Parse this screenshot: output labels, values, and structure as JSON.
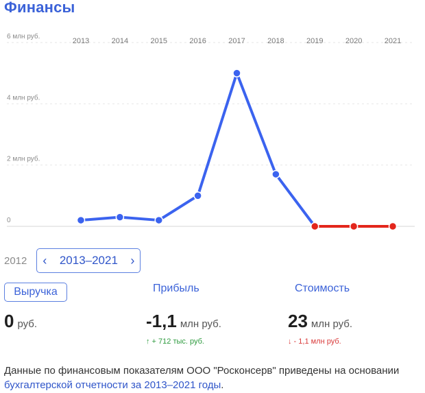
{
  "page": {
    "title": "Финансы"
  },
  "chart_data": {
    "type": "line",
    "x": [
      "2013",
      "2014",
      "2015",
      "2016",
      "2017",
      "2018",
      "2019",
      "2020",
      "2021"
    ],
    "series": [
      {
        "values": [
          0.2,
          0.3,
          0.2,
          1.0,
          5.0,
          1.7,
          0.0,
          0.0,
          0.0
        ]
      }
    ],
    "ytick_labels": [
      "0",
      "2 млн руб.",
      "4 млн руб.",
      "6 млн руб."
    ],
    "yticks": [
      0,
      2,
      4,
      6
    ],
    "ylim": [
      0,
      6
    ],
    "grid": true,
    "colors": {
      "positive": "#3b63ef",
      "zero": "#e3261c"
    }
  },
  "range": {
    "prev_year": "2012",
    "label": "2013–2021"
  },
  "metrics": {
    "revenue": {
      "tab": "Выручка",
      "value": "0",
      "unit": "руб."
    },
    "profit": {
      "tab": "Прибыль",
      "value": "-1,1",
      "unit": "млн руб.",
      "delta": "↑ + 712 тыс. руб."
    },
    "value": {
      "tab": "Стоимость",
      "value": "23",
      "unit": "млн руб.",
      "delta": "↓ - 1,1 млн руб."
    }
  },
  "footnote": {
    "text": "Данные по финансовым показателям ООО \"Росконсерв\" приведены на основании ",
    "link": "бухгалтерской отчетности за 2013–2021 годы",
    "end": "."
  }
}
